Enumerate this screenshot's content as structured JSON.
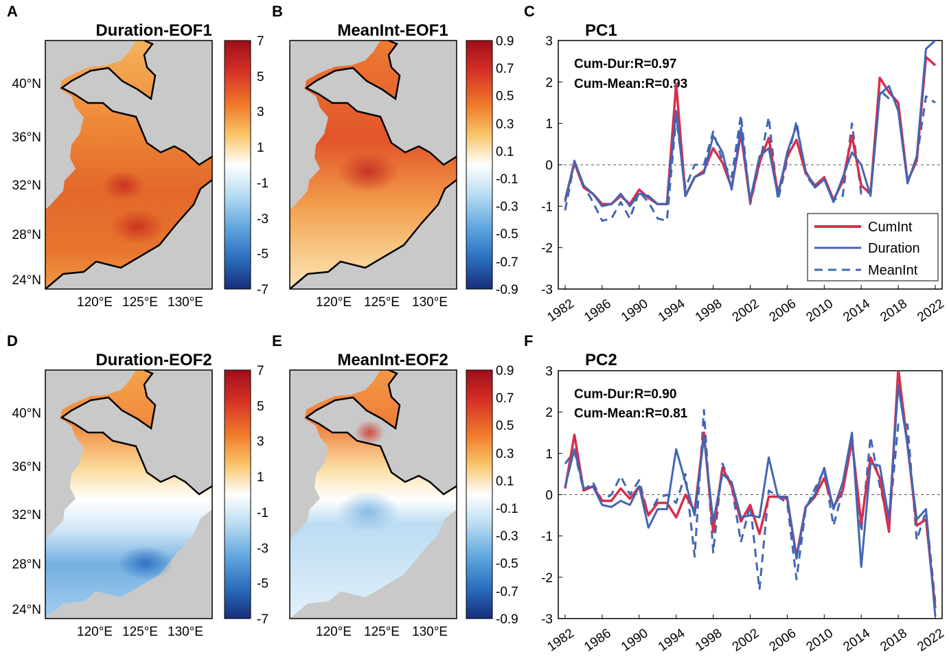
{
  "panels": {
    "A": {
      "letter": "A",
      "title": "Duration-EOF1"
    },
    "B": {
      "letter": "B",
      "title": "MeanInt-EOF1"
    },
    "C": {
      "letter": "C",
      "title": "PC1",
      "r_dur": "Cum-Dur:R=0.97",
      "r_mean": "Cum-Mean:R=0.93"
    },
    "D": {
      "letter": "D",
      "title": "Duration-EOF2"
    },
    "E": {
      "letter": "E",
      "title": "MeanInt-EOF2"
    },
    "F": {
      "letter": "F",
      "title": "PC2",
      "r_dur": "Cum-Dur:R=0.90",
      "r_mean": "Cum-Mean:R=0.81"
    }
  },
  "map_axes": {
    "lat_labels": [
      "40°N",
      "36°N",
      "32°N",
      "28°N",
      "24°N"
    ],
    "lon_labels": [
      "120°E",
      "125°E",
      "130°E"
    ]
  },
  "colorbars": {
    "duration": [
      "7",
      "5",
      "3",
      "1",
      "-1",
      "-3",
      "-5",
      "-7"
    ],
    "meanint": [
      "0.9",
      "0.7",
      "0.5",
      "0.3",
      "0.1",
      "-0.1",
      "-0.3",
      "-0.5",
      "-0.7",
      "-0.9"
    ]
  },
  "legend": {
    "cumint": "CumInt",
    "duration": "Duration",
    "meanint": "MeanInt"
  },
  "colors": {
    "cumint": "#d62f4c",
    "duration": "#4166b3",
    "meanint": "#4166b3",
    "land": "#c9c9c9"
  },
  "chart_data": [
    {
      "type": "line",
      "title": "PC1",
      "x": [
        1982,
        1983,
        1984,
        1985,
        1986,
        1987,
        1988,
        1989,
        1990,
        1991,
        1992,
        1993,
        1994,
        1995,
        1996,
        1997,
        1998,
        1999,
        2000,
        2001,
        2002,
        2003,
        2004,
        2005,
        2006,
        2007,
        2008,
        2009,
        2010,
        2011,
        2012,
        2013,
        2014,
        2015,
        2016,
        2017,
        2018,
        2019,
        2020,
        2021,
        2022
      ],
      "xticks": [
        "1982",
        "1986",
        "1990",
        "1994",
        "1998",
        "2002",
        "2006",
        "2010",
        "2014",
        "2018",
        "2022"
      ],
      "yticks": [
        "3",
        "2",
        "1",
        "0",
        "-1",
        "-2",
        "-3"
      ],
      "ylim": [
        -3,
        3
      ],
      "series": [
        {
          "name": "CumInt",
          "style": "solid",
          "values": [
            -0.85,
            0.05,
            -0.55,
            -0.7,
            -0.95,
            -0.95,
            -0.75,
            -0.95,
            -0.6,
            -0.8,
            -0.95,
            -0.95,
            1.95,
            -0.75,
            -0.3,
            -0.15,
            0.4,
            0.05,
            -0.55,
            0.75,
            -0.9,
            0.05,
            0.65,
            -0.7,
            0.2,
            0.6,
            -0.2,
            -0.5,
            -0.3,
            -0.85,
            -0.4,
            0.7,
            -0.5,
            -0.7,
            2.1,
            1.75,
            1.5,
            -0.4,
            0.1,
            2.6,
            2.4
          ]
        },
        {
          "name": "Duration",
          "style": "solid",
          "values": [
            -0.9,
            0.1,
            -0.5,
            -0.7,
            -1.0,
            -0.95,
            -0.7,
            -1.0,
            -0.7,
            -0.75,
            -0.95,
            -0.95,
            1.3,
            -0.75,
            -0.3,
            -0.2,
            0.7,
            0.3,
            -0.6,
            0.9,
            -0.85,
            0.2,
            0.4,
            -0.75,
            0.3,
            0.95,
            -0.15,
            -0.55,
            -0.35,
            -0.9,
            -0.3,
            0.3,
            0.0,
            -0.75,
            1.7,
            1.9,
            1.3,
            -0.45,
            0.2,
            2.8,
            3.0
          ]
        },
        {
          "name": "MeanInt",
          "style": "dashed",
          "values": [
            -1.1,
            0.05,
            -0.5,
            -0.9,
            -1.35,
            -1.3,
            -0.9,
            -1.3,
            -0.65,
            -0.9,
            -1.3,
            -1.35,
            1.15,
            -0.55,
            0.0,
            0.0,
            0.8,
            0.1,
            -0.3,
            1.2,
            -0.95,
            0.0,
            1.15,
            -0.85,
            0.1,
            1.05,
            -0.25,
            -0.55,
            -0.35,
            -0.85,
            -0.75,
            1.0,
            -0.7,
            -0.65,
            1.8,
            1.6,
            1.5,
            -0.4,
            0.15,
            1.65,
            1.5
          ]
        }
      ]
    },
    {
      "type": "line",
      "title": "PC2",
      "x": [
        1982,
        1983,
        1984,
        1985,
        1986,
        1987,
        1988,
        1989,
        1990,
        1991,
        1992,
        1993,
        1994,
        1995,
        1996,
        1997,
        1998,
        1999,
        2000,
        2001,
        2002,
        2003,
        2004,
        2005,
        2006,
        2007,
        2008,
        2009,
        2010,
        2011,
        2012,
        2013,
        2014,
        2015,
        2016,
        2017,
        2018,
        2019,
        2020,
        2021,
        2022
      ],
      "xticks": [
        "1982",
        "1986",
        "1990",
        "1994",
        "1998",
        "2002",
        "2006",
        "2010",
        "2014",
        "2018",
        "2022"
      ],
      "yticks": [
        "3",
        "2",
        "1",
        "0",
        "-1",
        "-2",
        "-3"
      ],
      "ylim": [
        -3,
        3
      ],
      "series": [
        {
          "name": "CumInt",
          "style": "solid",
          "values": [
            0.15,
            1.45,
            0.1,
            0.2,
            -0.15,
            -0.15,
            0.15,
            -0.1,
            0.2,
            -0.5,
            -0.2,
            -0.2,
            -0.55,
            0.0,
            -0.4,
            1.5,
            -0.9,
            0.65,
            0.2,
            -0.65,
            -0.25,
            -0.95,
            -0.05,
            -0.05,
            -0.1,
            -1.5,
            -0.3,
            -0.05,
            0.4,
            -0.3,
            0.1,
            1.3,
            -0.7,
            0.9,
            0.4,
            -0.9,
            3.05,
            1.2,
            -0.75,
            -0.6,
            -2.75
          ]
        },
        {
          "name": "Duration",
          "style": "solid",
          "values": [
            0.2,
            1.1,
            0.15,
            0.2,
            -0.25,
            -0.3,
            -0.15,
            -0.25,
            0.2,
            -0.8,
            -0.35,
            -0.35,
            1.1,
            0.3,
            -0.5,
            1.4,
            -0.65,
            0.5,
            0.3,
            -0.55,
            -0.5,
            -0.55,
            0.9,
            -0.05,
            -0.05,
            -1.55,
            -0.3,
            0.0,
            0.65,
            -0.35,
            0.3,
            1.5,
            -1.75,
            0.75,
            0.7,
            -0.6,
            2.65,
            1.2,
            -0.6,
            -0.35,
            -2.95
          ]
        },
        {
          "name": "MeanInt",
          "style": "dashed",
          "values": [
            0.75,
            1.05,
            0.1,
            0.3,
            -0.15,
            0.0,
            0.45,
            0.0,
            0.35,
            -0.5,
            -0.1,
            0.0,
            -0.2,
            0.5,
            -1.5,
            2.05,
            -1.4,
            0.75,
            0.2,
            -1.15,
            -0.25,
            -2.3,
            0.1,
            -0.05,
            -0.2,
            -2.05,
            -0.35,
            0.15,
            0.6,
            -0.75,
            0.1,
            1.3,
            -0.9,
            1.4,
            0.2,
            -0.7,
            1.7,
            1.7,
            -1.1,
            -0.4,
            -2.6
          ]
        }
      ]
    }
  ]
}
